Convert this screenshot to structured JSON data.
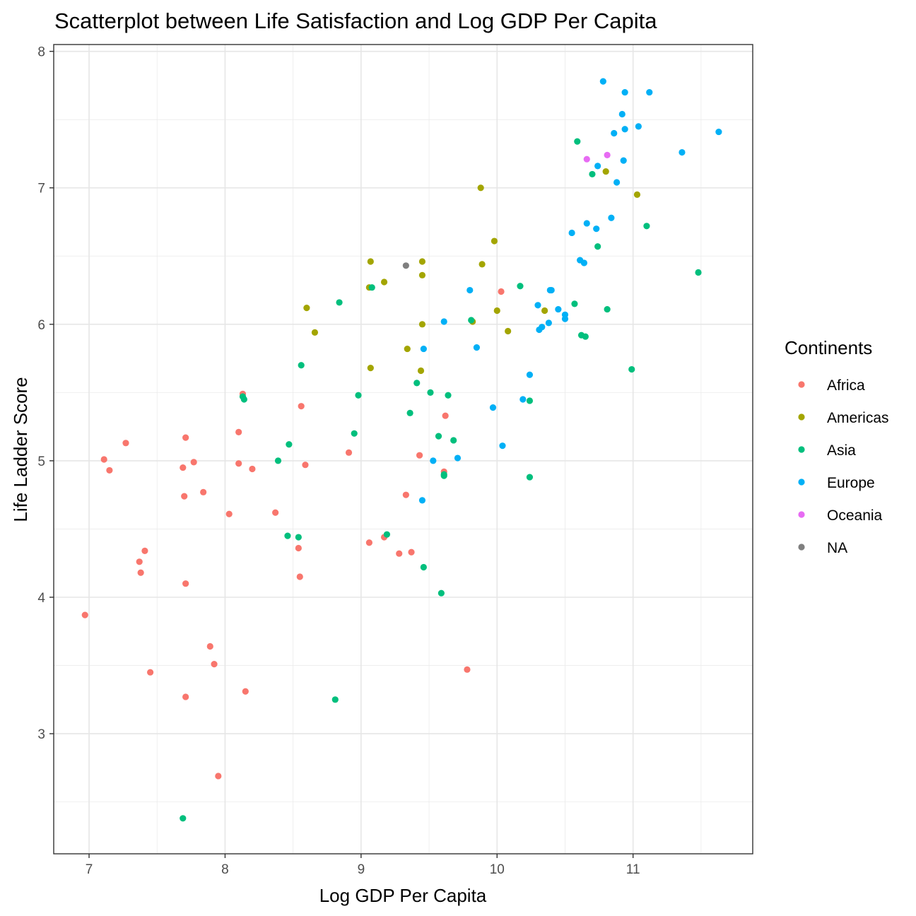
{
  "chart_data": {
    "type": "scatter",
    "title": "Scatterplot between Life Satisfaction and Log GDP Per Capita",
    "xlabel": "Log GDP Per Capita",
    "ylabel": "Life Ladder Score",
    "xlim": [
      6.74,
      11.88
    ],
    "ylim": [
      2.12,
      8.05
    ],
    "x_ticks": [
      7,
      8,
      9,
      10,
      11
    ],
    "y_ticks": [
      3,
      4,
      5,
      6,
      7,
      8
    ],
    "grid": true,
    "legend": {
      "title": "Continents",
      "position": "right"
    },
    "series": [
      {
        "name": "Africa",
        "color": "#F8766D",
        "points": [
          [
            6.97,
            3.87
          ],
          [
            7.11,
            5.01
          ],
          [
            7.15,
            4.93
          ],
          [
            7.27,
            5.13
          ],
          [
            7.37,
            4.26
          ],
          [
            7.38,
            4.18
          ],
          [
            7.41,
            4.34
          ],
          [
            7.45,
            3.45
          ],
          [
            7.69,
            4.95
          ],
          [
            7.7,
            4.74
          ],
          [
            7.71,
            5.17
          ],
          [
            7.71,
            4.1
          ],
          [
            7.71,
            3.27
          ],
          [
            7.77,
            4.99
          ],
          [
            7.84,
            4.77
          ],
          [
            7.89,
            3.64
          ],
          [
            7.92,
            3.51
          ],
          [
            7.95,
            2.69
          ],
          [
            8.03,
            4.61
          ],
          [
            8.1,
            5.21
          ],
          [
            8.1,
            4.98
          ],
          [
            8.13,
            5.49
          ],
          [
            8.15,
            3.31
          ],
          [
            8.2,
            4.94
          ],
          [
            8.37,
            4.62
          ],
          [
            8.54,
            4.36
          ],
          [
            8.55,
            4.15
          ],
          [
            8.56,
            5.4
          ],
          [
            8.59,
            4.97
          ],
          [
            8.91,
            5.06
          ],
          [
            9.06,
            4.4
          ],
          [
            9.17,
            4.44
          ],
          [
            9.28,
            4.32
          ],
          [
            9.33,
            4.75
          ],
          [
            9.37,
            4.33
          ],
          [
            9.43,
            5.04
          ],
          [
            9.61,
            4.92
          ],
          [
            9.62,
            5.33
          ],
          [
            9.78,
            3.47
          ],
          [
            10.03,
            6.24
          ]
        ]
      },
      {
        "name": "Americas",
        "color": "#A3A500",
        "points": [
          [
            8.6,
            6.12
          ],
          [
            8.66,
            5.94
          ],
          [
            9.06,
            6.27
          ],
          [
            9.07,
            6.46
          ],
          [
            9.07,
            5.68
          ],
          [
            9.17,
            6.31
          ],
          [
            9.34,
            5.82
          ],
          [
            9.44,
            5.66
          ],
          [
            9.45,
            6.0
          ],
          [
            9.45,
            6.46
          ],
          [
            9.45,
            6.36
          ],
          [
            9.82,
            6.02
          ],
          [
            9.88,
            7.0
          ],
          [
            9.89,
            6.44
          ],
          [
            9.98,
            6.61
          ],
          [
            10.0,
            6.1
          ],
          [
            10.08,
            5.95
          ],
          [
            10.35,
            6.1
          ],
          [
            10.8,
            7.12
          ],
          [
            11.03,
            6.95
          ]
        ]
      },
      {
        "name": "Asia",
        "color": "#00BF7D",
        "points": [
          [
            7.69,
            2.38
          ],
          [
            8.13,
            5.47
          ],
          [
            8.14,
            5.45
          ],
          [
            8.39,
            5.0
          ],
          [
            8.46,
            4.45
          ],
          [
            8.47,
            5.12
          ],
          [
            8.54,
            4.44
          ],
          [
            8.56,
            5.7
          ],
          [
            8.81,
            3.25
          ],
          [
            8.84,
            6.16
          ],
          [
            8.95,
            5.2
          ],
          [
            8.98,
            5.48
          ],
          [
            9.08,
            6.27
          ],
          [
            9.19,
            4.46
          ],
          [
            9.36,
            5.35
          ],
          [
            9.41,
            5.57
          ],
          [
            9.51,
            5.5
          ],
          [
            9.57,
            5.18
          ],
          [
            9.59,
            4.03
          ],
          [
            9.61,
            4.9
          ],
          [
            9.61,
            4.89
          ],
          [
            9.64,
            5.48
          ],
          [
            9.68,
            5.15
          ],
          [
            9.46,
            4.22
          ],
          [
            9.81,
            6.03
          ],
          [
            10.17,
            6.28
          ],
          [
            10.24,
            5.44
          ],
          [
            10.24,
            4.88
          ],
          [
            10.57,
            6.15
          ],
          [
            10.59,
            7.34
          ],
          [
            10.62,
            5.92
          ],
          [
            10.65,
            5.91
          ],
          [
            10.7,
            7.1
          ],
          [
            10.74,
            6.57
          ],
          [
            10.81,
            6.11
          ],
          [
            10.99,
            5.67
          ],
          [
            11.1,
            6.72
          ],
          [
            11.48,
            6.38
          ]
        ]
      },
      {
        "name": "Europe",
        "color": "#00B0F6",
        "points": [
          [
            9.45,
            4.71
          ],
          [
            9.46,
            5.82
          ],
          [
            9.53,
            5.0
          ],
          [
            9.61,
            6.02
          ],
          [
            9.71,
            5.02
          ],
          [
            9.8,
            6.25
          ],
          [
            9.85,
            5.83
          ],
          [
            9.97,
            5.39
          ],
          [
            10.04,
            5.11
          ],
          [
            10.19,
            5.45
          ],
          [
            10.24,
            5.63
          ],
          [
            10.3,
            6.14
          ],
          [
            10.31,
            5.96
          ],
          [
            10.33,
            5.98
          ],
          [
            10.38,
            6.01
          ],
          [
            10.39,
            6.25
          ],
          [
            10.4,
            6.25
          ],
          [
            10.45,
            6.11
          ],
          [
            10.5,
            6.04
          ],
          [
            10.5,
            6.07
          ],
          [
            10.55,
            6.67
          ],
          [
            10.61,
            6.47
          ],
          [
            10.64,
            6.45
          ],
          [
            10.66,
            6.74
          ],
          [
            10.73,
            6.7
          ],
          [
            10.74,
            7.16
          ],
          [
            10.78,
            7.78
          ],
          [
            10.84,
            6.78
          ],
          [
            10.86,
            7.4
          ],
          [
            10.88,
            7.04
          ],
          [
            10.92,
            7.54
          ],
          [
            10.93,
            7.2
          ],
          [
            10.94,
            7.43
          ],
          [
            10.94,
            7.7
          ],
          [
            11.04,
            7.45
          ],
          [
            11.12,
            7.7
          ],
          [
            11.36,
            7.26
          ],
          [
            11.63,
            7.41
          ]
        ]
      },
      {
        "name": "Oceania",
        "color": "#E76BF3",
        "points": [
          [
            10.66,
            7.21
          ],
          [
            10.81,
            7.24
          ]
        ]
      },
      {
        "name": "NA",
        "color": "#7F7F7F",
        "points": [
          [
            9.33,
            6.43
          ]
        ]
      }
    ]
  }
}
